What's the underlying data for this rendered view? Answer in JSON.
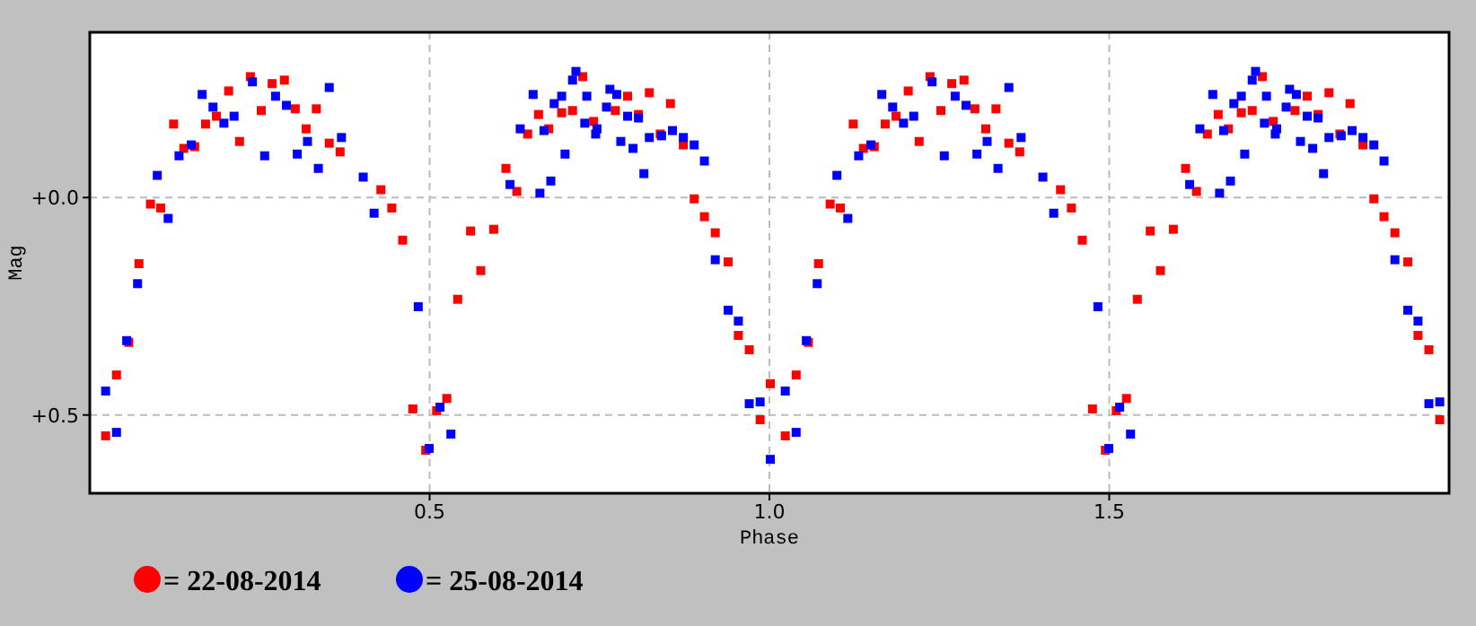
{
  "chart_data": {
    "type": "scatter",
    "xlabel": "Phase",
    "ylabel": "Mag",
    "xlim": [
      0,
      2
    ],
    "ylim": [
      0.68,
      -0.38
    ],
    "xticks": [
      {
        "value": 0.5,
        "label": "0.5"
      },
      {
        "value": 1,
        "label": "1.0"
      },
      {
        "value": 1.5,
        "label": "1.5"
      }
    ],
    "yticks": [
      {
        "value": 0,
        "label": "+0.0"
      },
      {
        "value": 0.5,
        "label": "+0.5"
      }
    ],
    "grid": true,
    "legend": "bottom",
    "marker": "square",
    "series": [
      {
        "name": "= 22-08-2014",
        "color": "#ff0000",
        "x": [
          0.022,
          0.038,
          0.056,
          0.071,
          0.088,
          0.103,
          0.122,
          0.137,
          0.153,
          0.169,
          0.185,
          0.203,
          0.219,
          0.235,
          0.251,
          0.267,
          0.285,
          0.301,
          0.317,
          0.332,
          0.351,
          0.367,
          0.427,
          0.443,
          0.459,
          0.474,
          0.493,
          0.509,
          0.524,
          0.54,
          0.559,
          0.574,
          0.593,
          0.611,
          0.627,
          0.643,
          0.659,
          0.674,
          0.693,
          0.709,
          0.724,
          0.74,
          0.772,
          0.79,
          0.806,
          0.822,
          0.838,
          0.853,
          0.872,
          0.888,
          0.903,
          0.919,
          0.938,
          0.953,
          0.969,
          0.985,
          1.0,
          1.022,
          1.038,
          1.056,
          1.071,
          1.088,
          1.103,
          1.122,
          1.137,
          1.153,
          1.169,
          1.185,
          1.203,
          1.219,
          1.235,
          1.251,
          1.267,
          1.285,
          1.301,
          1.317,
          1.332,
          1.351,
          1.367,
          1.427,
          1.443,
          1.459,
          1.474,
          1.493,
          1.509,
          1.524,
          1.54,
          1.559,
          1.574,
          1.593,
          1.611,
          1.627,
          1.643,
          1.659,
          1.674,
          1.693,
          1.709,
          1.724,
          1.74,
          1.772,
          1.79,
          1.806,
          1.822,
          1.838,
          1.853,
          1.872,
          1.888,
          1.903,
          1.919,
          1.938,
          1.953,
          1.969,
          1.985
        ],
        "values": [
          0.548,
          0.408,
          0.333,
          0.152,
          0.015,
          0.024,
          -0.169,
          -0.113,
          -0.117,
          -0.169,
          -0.187,
          -0.245,
          -0.129,
          -0.278,
          -0.2,
          -0.262,
          -0.27,
          -0.204,
          -0.158,
          -0.204,
          -0.125,
          -0.105,
          -0.018,
          0.024,
          0.098,
          0.486,
          0.581,
          0.49,
          0.462,
          0.234,
          0.077,
          0.168,
          0.073,
          -0.067,
          -0.014,
          -0.146,
          -0.191,
          -0.158,
          -0.195,
          -0.2,
          -0.278,
          -0.175,
          -0.2,
          -0.233,
          -0.191,
          -0.241,
          -0.146,
          -0.216,
          -0.121,
          0.003,
          0.044,
          0.081,
          0.148,
          0.317,
          0.35,
          0.511,
          0.428,
          0.548,
          0.408,
          0.333,
          0.152,
          0.015,
          0.024,
          -0.169,
          -0.113,
          -0.117,
          -0.169,
          -0.187,
          -0.245,
          -0.129,
          -0.278,
          -0.2,
          -0.262,
          -0.27,
          -0.204,
          -0.158,
          -0.204,
          -0.125,
          -0.105,
          -0.018,
          0.024,
          0.098,
          0.486,
          0.581,
          0.49,
          0.462,
          0.234,
          0.077,
          0.168,
          0.073,
          -0.067,
          -0.014,
          -0.146,
          -0.191,
          -0.158,
          -0.195,
          -0.2,
          -0.278,
          -0.175,
          -0.2,
          -0.233,
          -0.191,
          -0.241,
          -0.146,
          -0.216,
          -0.121,
          0.003,
          0.044,
          0.081,
          0.148,
          0.317,
          0.35,
          0.511
        ]
      },
      {
        "name": "= 25-08-2014",
        "color": "#0000ff",
        "x": [
          0.022,
          0.038,
          0.053,
          0.069,
          0.098,
          0.114,
          0.13,
          0.148,
          0.164,
          0.18,
          0.196,
          0.211,
          0.238,
          0.256,
          0.272,
          0.288,
          0.304,
          0.319,
          0.335,
          0.351,
          0.369,
          0.401,
          0.417,
          0.482,
          0.498,
          0.514,
          0.53,
          0.617,
          0.632,
          0.651,
          0.661,
          0.667,
          0.677,
          0.682,
          0.693,
          0.698,
          0.709,
          0.714,
          0.727,
          0.73,
          0.743,
          0.745,
          0.759,
          0.764,
          0.774,
          0.78,
          0.79,
          0.798,
          0.806,
          0.814,
          0.822,
          0.84,
          0.856,
          0.872,
          0.888,
          0.903,
          0.919,
          0.938,
          0.953,
          0.969,
          0.985,
          1.0,
          1.022,
          1.038,
          1.053,
          1.069,
          1.098,
          1.114,
          1.13,
          1.148,
          1.164,
          1.18,
          1.196,
          1.211,
          1.238,
          1.256,
          1.272,
          1.288,
          1.304,
          1.319,
          1.335,
          1.351,
          1.369,
          1.401,
          1.417,
          1.482,
          1.498,
          1.514,
          1.53,
          1.617,
          1.632,
          1.651,
          1.661,
          1.667,
          1.677,
          1.682,
          1.693,
          1.698,
          1.709,
          1.714,
          1.727,
          1.73,
          1.743,
          1.745,
          1.759,
          1.764,
          1.774,
          1.78,
          1.79,
          1.798,
          1.806,
          1.814,
          1.822,
          1.84,
          1.856,
          1.872,
          1.888,
          1.903,
          1.919,
          1.938,
          1.953,
          1.969,
          1.985
        ],
        "values": [
          0.445,
          0.54,
          0.329,
          0.198,
          -0.051,
          0.048,
          -0.096,
          -0.121,
          -0.237,
          -0.208,
          -0.171,
          -0.187,
          -0.266,
          -0.096,
          -0.233,
          -0.212,
          -0.1,
          -0.129,
          -0.067,
          -0.253,
          -0.138,
          -0.047,
          0.036,
          0.251,
          0.577,
          0.482,
          0.544,
          -0.03,
          -0.158,
          -0.237,
          -0.01,
          -0.154,
          -0.038,
          -0.216,
          -0.233,
          -0.1,
          -0.27,
          -0.29,
          -0.171,
          -0.233,
          -0.146,
          -0.158,
          -0.208,
          -0.249,
          -0.237,
          -0.129,
          -0.187,
          -0.113,
          -0.183,
          -0.055,
          -0.138,
          -0.142,
          -0.154,
          -0.138,
          -0.121,
          -0.084,
          0.143,
          0.259,
          0.284,
          0.474,
          0.47,
          0.602,
          0.445,
          0.54,
          0.329,
          0.198,
          -0.051,
          0.048,
          -0.096,
          -0.121,
          -0.237,
          -0.208,
          -0.171,
          -0.187,
          -0.266,
          -0.096,
          -0.233,
          -0.212,
          -0.1,
          -0.129,
          -0.067,
          -0.253,
          -0.138,
          -0.047,
          0.036,
          0.251,
          0.577,
          0.482,
          0.544,
          -0.03,
          -0.158,
          -0.237,
          -0.01,
          -0.154,
          -0.038,
          -0.216,
          -0.233,
          -0.1,
          -0.27,
          -0.29,
          -0.171,
          -0.233,
          -0.146,
          -0.158,
          -0.208,
          -0.249,
          -0.237,
          -0.129,
          -0.187,
          -0.113,
          -0.183,
          -0.055,
          -0.138,
          -0.142,
          -0.154,
          -0.138,
          -0.121,
          -0.084,
          0.143,
          0.259,
          0.284,
          0.474,
          0.47
        ]
      }
    ]
  }
}
